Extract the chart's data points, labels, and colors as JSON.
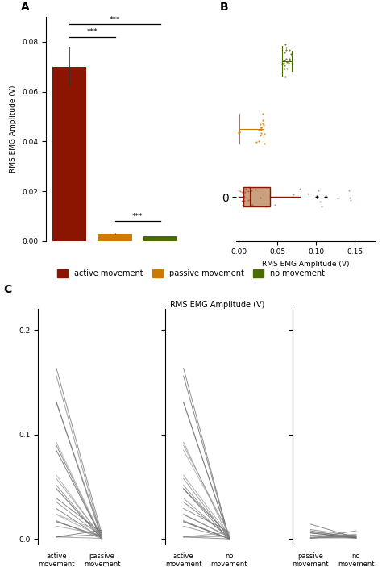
{
  "colors": {
    "active": "#8B1500",
    "passive": "#CC7A00",
    "no_movement": "#4A6B00"
  },
  "panel_A": {
    "bar_means": [
      0.07,
      0.003,
      0.002
    ],
    "bar_errors": [
      0.008,
      0.0003,
      0.0002
    ],
    "ylabel": "RMS EMG Amplitude (V)",
    "ylim": [
      0,
      0.09
    ],
    "yticks": [
      0.0,
      0.02,
      0.04,
      0.06,
      0.08
    ]
  },
  "panel_B": {
    "xlabel": "RMS EMG Amplitude (V)",
    "xlim": [
      -0.003,
      0.175
    ],
    "xticks": [
      0.0,
      0.05,
      0.1,
      0.15
    ]
  },
  "legend": {
    "labels": [
      "active movement",
      "passive movement",
      "no movement"
    ],
    "colors": [
      "#8B1500",
      "#CC7A00",
      "#4A6B00"
    ]
  },
  "panel_C": {
    "title": "RMS EMG Amplitude (V)",
    "ylim": [
      -0.005,
      0.22
    ],
    "yticks": [
      0.0,
      0.1,
      0.2
    ],
    "subplots": [
      [
        "active\nmovement",
        "passive\nmovement"
      ],
      [
        "active\nmovement",
        "no\nmovement"
      ],
      [
        "passive\nmovement",
        "no\nmovement"
      ]
    ]
  }
}
